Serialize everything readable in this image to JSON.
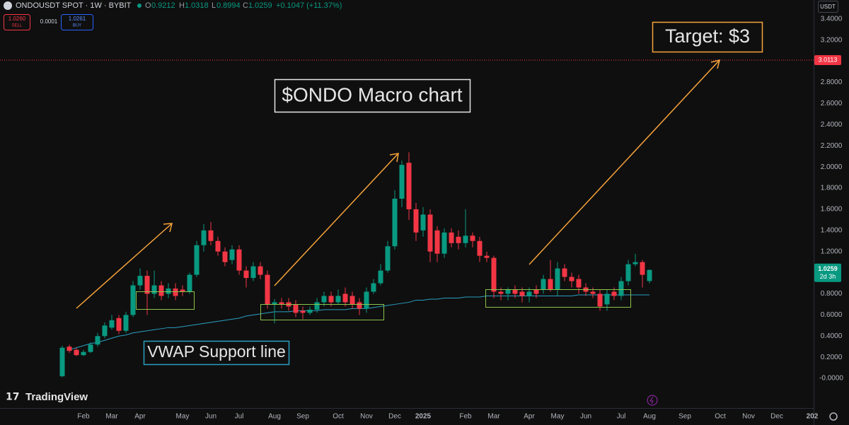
{
  "header": {
    "symbol": "ONDOUSDT SPOT · 1W · BYBIT",
    "ohlc": [
      {
        "key": "O",
        "value": "0.9212"
      },
      {
        "key": "H",
        "value": "1.0318"
      },
      {
        "key": "L",
        "value": "0.8994"
      },
      {
        "key": "C",
        "value": "1.0259"
      }
    ],
    "change": "+0.1047 (+11.37%)",
    "sell": {
      "price": "1.0260",
      "label": "SELL"
    },
    "spread": "0.0001",
    "buy": {
      "price": "1.0261",
      "label": "BUY"
    },
    "currency": "USDT",
    "brand": "TradingView"
  },
  "chart_data": {
    "type": "candlestick",
    "title": "$ONDO Macro chart",
    "annotations": [
      "VWAP Support line",
      "Target: $3"
    ],
    "categories": [
      null,
      null,
      null,
      "Feb",
      null,
      null,
      null,
      "Mar",
      null,
      null,
      null,
      "Apr",
      null,
      null,
      null,
      null,
      null,
      "May",
      null,
      null,
      null,
      "Jun",
      null,
      null,
      null,
      "Jul",
      null,
      null,
      null,
      null,
      "Aug",
      null,
      null,
      null,
      "Sep",
      null,
      null,
      null,
      null,
      "Oct",
      null,
      null,
      null,
      "Nov",
      null,
      null,
      null,
      "Dec",
      null,
      null,
      null,
      "2025",
      null,
      null,
      null,
      null,
      null,
      "Feb",
      null,
      null,
      null,
      "Mar",
      null,
      null,
      null,
      null,
      "Apr",
      null,
      null,
      null,
      "May",
      null,
      null,
      null,
      "Jun",
      null,
      null,
      null,
      null,
      "Jul",
      null,
      null,
      null,
      "Aug",
      null,
      null,
      null,
      null,
      "Sep",
      null,
      null,
      null,
      null,
      "Oct",
      null,
      null,
      null,
      "Nov",
      null,
      null,
      null,
      "Dec",
      null,
      null,
      null,
      null,
      "202"
    ],
    "candles": {
      "up_color": "#089981",
      "down_color": "#f23645",
      "open": [
        0.02,
        0.3,
        0.27,
        0.22,
        0.25,
        0.32,
        0.4,
        0.48,
        0.57,
        0.45,
        0.6,
        0.88,
        0.97,
        0.8,
        0.88,
        0.8,
        0.85,
        0.84,
        0.82,
        0.98,
        1.26,
        1.4,
        1.3,
        1.2,
        1.12,
        1.22,
        1.02,
        0.95,
        1.06,
        0.98,
        0.7,
        0.72,
        0.72,
        0.7,
        0.64,
        0.62,
        0.65,
        0.72,
        0.78,
        0.72,
        0.8,
        0.78,
        0.72,
        0.66,
        0.82,
        0.9,
        1.02,
        1.25,
        1.7,
        2.04,
        1.6,
        1.4,
        1.55,
        1.4,
        1.18,
        1.38,
        1.34,
        1.28,
        1.35,
        1.3,
        1.16,
        1.14,
        0.82,
        0.8,
        0.84,
        0.82,
        0.78,
        0.84,
        0.84,
        0.94,
        0.84,
        1.04,
        0.96,
        0.94,
        0.86,
        0.82,
        0.8,
        0.7,
        0.82,
        0.78,
        0.92,
        1.08,
        1.1,
        0.9212,
        null,
        null,
        null,
        null,
        null,
        null,
        null,
        null,
        null,
        null,
        null,
        null,
        null,
        null,
        null,
        null,
        null,
        null,
        null,
        null,
        null,
        null,
        null
      ],
      "high": [
        0.31,
        0.32,
        0.29,
        0.27,
        0.34,
        0.43,
        0.53,
        0.6,
        0.6,
        0.63,
        0.92,
        1.04,
        1.02,
        1.02,
        0.92,
        0.9,
        0.9,
        0.88,
        1.0,
        1.3,
        1.46,
        1.48,
        1.34,
        1.24,
        1.26,
        1.26,
        1.06,
        1.1,
        1.1,
        1.02,
        0.75,
        0.76,
        0.76,
        0.74,
        0.68,
        0.68,
        0.76,
        0.82,
        0.82,
        0.84,
        0.86,
        0.82,
        0.76,
        0.86,
        0.94,
        1.08,
        1.3,
        1.78,
        2.06,
        2.14,
        1.66,
        1.62,
        1.6,
        1.44,
        1.42,
        1.42,
        1.4,
        1.6,
        1.38,
        1.34,
        1.2,
        1.16,
        0.86,
        0.86,
        0.88,
        0.86,
        0.86,
        0.88,
        0.98,
        1.12,
        1.1,
        1.08,
        1.0,
        0.98,
        0.9,
        0.86,
        0.84,
        0.84,
        0.86,
        0.96,
        1.12,
        1.18,
        1.12,
        1.0318,
        null,
        null,
        null,
        null,
        null,
        null,
        null,
        null,
        null,
        null,
        null,
        null,
        null,
        null,
        null,
        null,
        null,
        null,
        null,
        null,
        null,
        null,
        null
      ],
      "low": [
        0.01,
        0.24,
        0.21,
        0.21,
        0.24,
        0.3,
        0.38,
        0.46,
        0.42,
        0.43,
        0.58,
        0.84,
        0.6,
        0.76,
        0.74,
        0.76,
        0.74,
        0.78,
        0.8,
        0.96,
        1.2,
        1.26,
        1.16,
        1.06,
        1.08,
        0.98,
        0.86,
        0.92,
        0.94,
        0.66,
        0.52,
        0.66,
        0.64,
        0.58,
        0.56,
        0.6,
        0.62,
        0.68,
        0.68,
        0.7,
        0.68,
        0.66,
        0.6,
        0.62,
        0.8,
        0.88,
        1.0,
        1.22,
        1.62,
        1.5,
        1.3,
        1.34,
        1.1,
        1.1,
        1.14,
        1.24,
        1.22,
        1.24,
        1.24,
        1.1,
        1.1,
        0.76,
        0.74,
        0.74,
        0.76,
        0.72,
        0.72,
        0.76,
        0.8,
        0.82,
        0.78,
        0.92,
        0.86,
        0.8,
        0.78,
        0.76,
        0.64,
        0.64,
        0.74,
        0.74,
        0.88,
        1.06,
        0.86,
        0.8994,
        null,
        null,
        null,
        null,
        null,
        null,
        null,
        null,
        null,
        null,
        null,
        null,
        null,
        null,
        null,
        null,
        null,
        null,
        null,
        null,
        null,
        null,
        null
      ],
      "close": [
        0.29,
        0.26,
        0.22,
        0.25,
        0.32,
        0.4,
        0.5,
        0.55,
        0.45,
        0.6,
        0.88,
        0.97,
        0.8,
        0.88,
        0.78,
        0.85,
        0.78,
        0.82,
        0.98,
        1.26,
        1.4,
        1.3,
        1.2,
        1.1,
        1.22,
        1.02,
        0.95,
        1.06,
        0.98,
        0.7,
        0.72,
        0.7,
        0.68,
        0.62,
        0.62,
        0.65,
        0.72,
        0.78,
        0.72,
        0.78,
        0.72,
        0.7,
        0.66,
        0.82,
        0.9,
        1.02,
        1.25,
        1.7,
        2.02,
        1.6,
        1.38,
        1.55,
        1.2,
        1.18,
        1.38,
        1.28,
        1.28,
        1.35,
        1.3,
        1.16,
        1.14,
        0.82,
        0.8,
        0.84,
        0.8,
        0.78,
        0.82,
        0.8,
        0.94,
        0.84,
        1.04,
        0.96,
        0.92,
        0.86,
        0.82,
        0.8,
        0.68,
        0.8,
        0.78,
        0.92,
        1.08,
        1.1,
        0.98,
        1.0259,
        null,
        null,
        null,
        null,
        null,
        null,
        null,
        null,
        null,
        null,
        null,
        null,
        null,
        null,
        null,
        null,
        null,
        null,
        null,
        null,
        null,
        null,
        null
      ]
    },
    "lines": [
      {
        "color": "#2a9fc2",
        "values": [
          null,
          0.27,
          0.29,
          0.31,
          0.33,
          0.34,
          0.36,
          0.38,
          0.4,
          0.41,
          0.43,
          0.44,
          0.45,
          0.46,
          0.47,
          0.48,
          0.48,
          0.49,
          0.5,
          0.51,
          0.52,
          0.53,
          0.54,
          0.55,
          0.56,
          0.57,
          0.59,
          0.6,
          0.61,
          0.62,
          0.63,
          0.63,
          0.63,
          0.64,
          0.64,
          0.64,
          0.64,
          0.65,
          0.65,
          0.65,
          0.65,
          0.66,
          0.66,
          0.66,
          0.67,
          0.68,
          0.69,
          0.7,
          0.71,
          0.72,
          0.74,
          0.74,
          0.75,
          0.75,
          0.76,
          0.76,
          0.76,
          0.77,
          0.77,
          0.77,
          0.78,
          0.78,
          0.78,
          0.78,
          0.78,
          0.78,
          0.78,
          0.78,
          0.78,
          0.78,
          0.78,
          0.78,
          0.78,
          0.79,
          0.79,
          0.79,
          0.79,
          0.79,
          0.79,
          0.79,
          0.79,
          0.79,
          0.79,
          0.79,
          null,
          null,
          null,
          null,
          null,
          null,
          null,
          null,
          null,
          null,
          null,
          null,
          null,
          null,
          null,
          null,
          null,
          null,
          null,
          null,
          null,
          null,
          null
        ]
      }
    ],
    "ylim": [
      -0.1,
      3.58
    ],
    "yticks": [
      {
        "value": 0,
        "label": "-0.0000"
      },
      {
        "value": 0.2,
        "label": "0.2000"
      },
      {
        "value": 0.4,
        "label": "0.4000"
      },
      {
        "value": 0.6,
        "label": "0.6000"
      },
      {
        "value": 0.8,
        "label": "0.8000"
      },
      {
        "value": 1.2,
        "label": "1.2000"
      },
      {
        "value": 1.4,
        "label": "1.4000"
      },
      {
        "value": 1.6,
        "label": "1.6000"
      },
      {
        "value": 1.8,
        "label": "1.8000"
      },
      {
        "value": 2.0,
        "label": "2.0000"
      },
      {
        "value": 2.2,
        "label": "2.2000"
      },
      {
        "value": 2.4,
        "label": "2.4000"
      },
      {
        "value": 2.6,
        "label": "2.6000"
      },
      {
        "value": 2.8,
        "label": "2.8000"
      },
      {
        "value": 3.2,
        "label": "3.2000"
      },
      {
        "value": 3.4,
        "label": "3.4000"
      }
    ],
    "grid": false,
    "price_line": {
      "value": 3.0113,
      "label": "3.0113",
      "color": "#f23645"
    },
    "last_price": {
      "value": 1.0259,
      "label": "1.0259",
      "countdown": "2d 3h",
      "color": "#089981"
    }
  }
}
